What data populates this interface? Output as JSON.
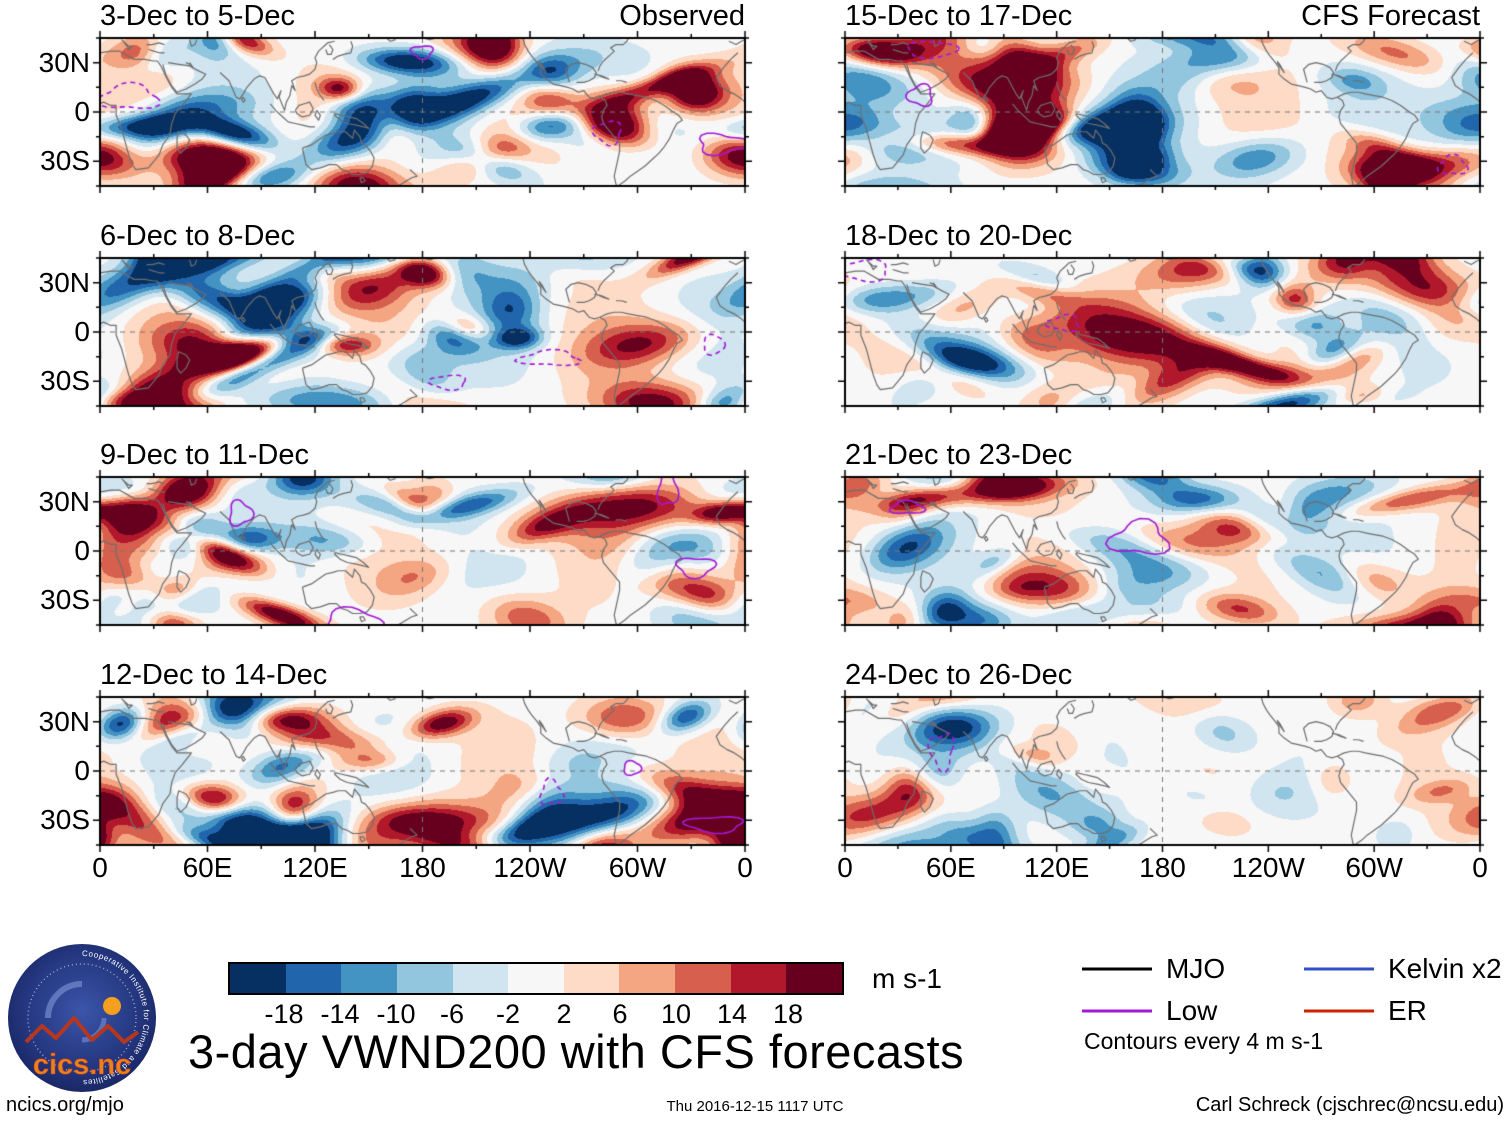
{
  "chart_data": {
    "type": "heatmap",
    "title": "3-day VWND200 with CFS forecasts",
    "unit": "m s-1",
    "column_headers": [
      "Observed",
      "CFS Forecast"
    ],
    "panels": [
      {
        "title": "3-Dec to 5-Dec",
        "corner": "Observed",
        "col": 0,
        "row": 0
      },
      {
        "title": "6-Dec to 8-Dec",
        "corner": "",
        "col": 0,
        "row": 1
      },
      {
        "title": "9-Dec to 11-Dec",
        "corner": "",
        "col": 0,
        "row": 2
      },
      {
        "title": "12-Dec to 14-Dec",
        "corner": "",
        "col": 0,
        "row": 3
      },
      {
        "title": "15-Dec to 17-Dec",
        "corner": "CFS Forecast",
        "col": 1,
        "row": 0
      },
      {
        "title": "18-Dec to 20-Dec",
        "corner": "",
        "col": 1,
        "row": 1
      },
      {
        "title": "21-Dec to 23-Dec",
        "corner": "",
        "col": 1,
        "row": 2
      },
      {
        "title": "24-Dec to 26-Dec",
        "corner": "",
        "col": 1,
        "row": 3
      }
    ],
    "xticks": [
      "0",
      "60E",
      "120E",
      "180",
      "120W",
      "60W",
      "0"
    ],
    "yticks": [
      "30N",
      "0",
      "30S"
    ],
    "x_range_deg": [
      0,
      360
    ],
    "y_range_deg": [
      -45,
      45
    ],
    "colorbar": {
      "tick_labels": [
        "-18",
        "-14",
        "-10",
        "-6",
        "-2",
        "2",
        "6",
        "10",
        "14",
        "18"
      ],
      "levels": [
        -18,
        -14,
        -10,
        -6,
        -2,
        2,
        6,
        10,
        14,
        18
      ],
      "colors": [
        "#053061",
        "#2166ac",
        "#4393c3",
        "#92c5de",
        "#d1e5f0",
        "#f7f7f7",
        "#fddbc7",
        "#f4a582",
        "#d6604d",
        "#b2182b",
        "#67001f"
      ],
      "unit": "m s-1"
    },
    "legend": {
      "entries": [
        {
          "label": "MJO",
          "color": "#000000"
        },
        {
          "label": "Kelvin x2",
          "color": "#3050c8"
        },
        {
          "label": "Low",
          "color": "#a21ad6"
        },
        {
          "label": "ER",
          "color": "#cc2200"
        }
      ],
      "note": "Contours every 4 m s-1"
    }
  },
  "logo": {
    "text": "cics.nc",
    "ring_text": "Cooperative Institute for Climate and Satellites"
  },
  "footer": {
    "left": "ncics.org/mjo",
    "center": "Thu 2016-12-15 1117 UTC",
    "right": "Carl Schreck (cjschrec@ncsu.edu)"
  }
}
